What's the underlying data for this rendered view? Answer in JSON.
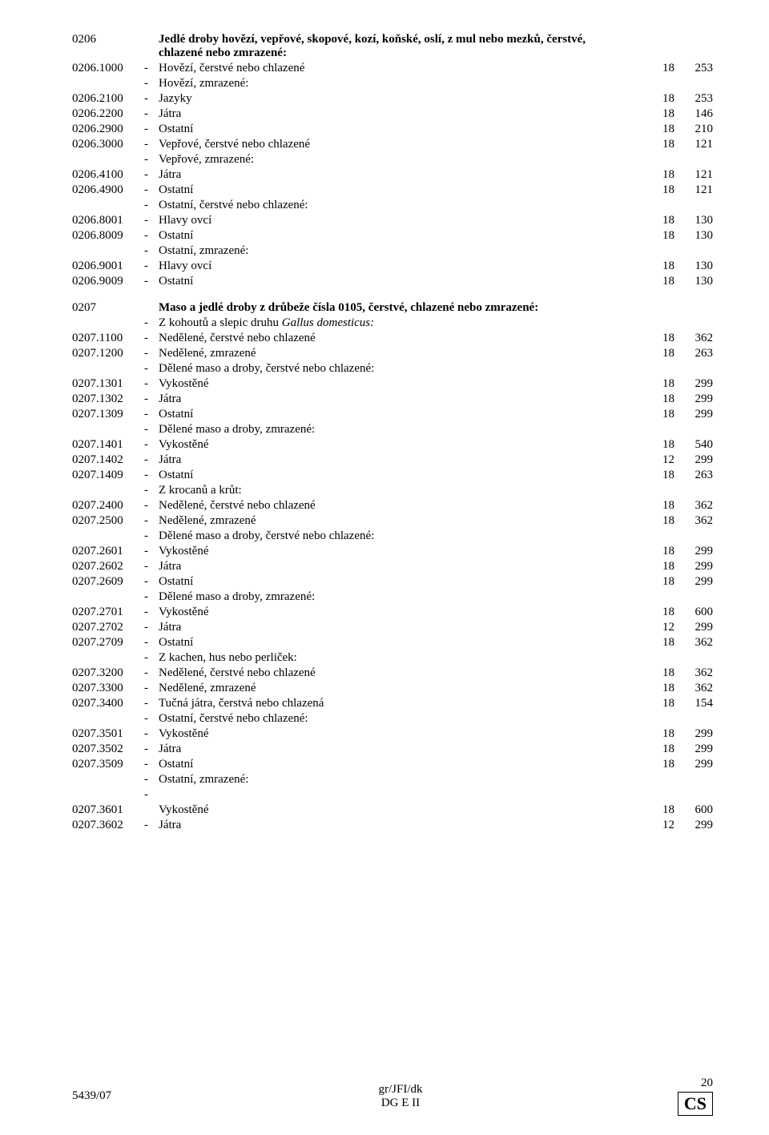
{
  "rows": [
    {
      "code": "0206",
      "type": "heading",
      "text": "Jedlé droby hovězí, vepřové, skopové, kozí, koňské, oslí, z mul nebo mezků, čerstvé, chlazené nebo zmrazené:"
    },
    {
      "code": "0206.1000",
      "dash": "-",
      "text": "Hovězí, čerstvé nebo chlazené",
      "c1": "18",
      "c2": "253"
    },
    {
      "code": "",
      "dash": "-",
      "text": "Hovězí, zmrazené:"
    },
    {
      "code": "0206.2100",
      "dash": "-",
      "text": "Jazyky",
      "c1": "18",
      "c2": "253"
    },
    {
      "code": "0206.2200",
      "dash": "-",
      "text": "Játra",
      "c1": "18",
      "c2": "146"
    },
    {
      "code": "0206.2900",
      "dash": "-",
      "text": "Ostatní",
      "c1": "18",
      "c2": "210"
    },
    {
      "code": "0206.3000",
      "dash": "-",
      "text": "Vepřové, čerstvé nebo chlazené",
      "c1": "18",
      "c2": "121"
    },
    {
      "code": "",
      "dash": "-",
      "text": "Vepřové, zmrazené:"
    },
    {
      "code": "0206.4100",
      "dash": "-",
      "text": "Játra",
      "c1": "18",
      "c2": "121"
    },
    {
      "code": "0206.4900",
      "dash": "-",
      "text": "Ostatní",
      "c1": "18",
      "c2": "121"
    },
    {
      "code": "",
      "dash": "-",
      "text": "Ostatní, čerstvé nebo chlazené:"
    },
    {
      "code": "0206.8001",
      "dash": "-",
      "text": "Hlavy ovcí",
      "c1": "18",
      "c2": "130"
    },
    {
      "code": "0206.8009",
      "dash": "-",
      "text": "Ostatní",
      "c1": "18",
      "c2": "130"
    },
    {
      "code": "",
      "dash": "-",
      "text": "Ostatní, zmrazené:"
    },
    {
      "code": "0206.9001",
      "dash": "-",
      "text": "Hlavy ovcí",
      "c1": "18",
      "c2": "130"
    },
    {
      "code": "0206.9009",
      "dash": "-",
      "text": "Ostatní",
      "c1": "18",
      "c2": "130"
    },
    {
      "type": "spacer"
    },
    {
      "code": "0207",
      "type": "heading",
      "text": "Maso a jedlé droby z drůbeže čísla 0105, čerstvé, chlazené nebo zmrazené:"
    },
    {
      "code": "",
      "dash": "-",
      "type": "italic",
      "text": "Z kohoutů a slepic druhu Gallus domesticus:"
    },
    {
      "code": "0207.1100",
      "dash": "-",
      "text": "Nedělené, čerstvé nebo chlazené",
      "c1": "18",
      "c2": "362"
    },
    {
      "code": "0207.1200",
      "dash": "-",
      "text": "Nedělené, zmrazené",
      "c1": "18",
      "c2": "263"
    },
    {
      "code": "",
      "dash": "-",
      "text": "Dělené maso a droby, čerstvé nebo chlazené:"
    },
    {
      "code": "0207.1301",
      "dash": "-",
      "text": "Vykostěné",
      "c1": "18",
      "c2": "299"
    },
    {
      "code": "0207.1302",
      "dash": "-",
      "text": "Játra",
      "c1": "18",
      "c2": "299"
    },
    {
      "code": "0207.1309",
      "dash": "-",
      "text": "Ostatní",
      "c1": "18",
      "c2": "299"
    },
    {
      "code": "",
      "dash": "-",
      "text": "Dělené maso a droby, zmrazené:"
    },
    {
      "code": "0207.1401",
      "dash": "-",
      "text": "Vykostěné",
      "c1": "18",
      "c2": "540"
    },
    {
      "code": "0207.1402",
      "dash": "-",
      "text": "Játra",
      "c1": "12",
      "c2": "299"
    },
    {
      "code": "0207.1409",
      "dash": "-",
      "text": "Ostatní",
      "c1": "18",
      "c2": "263"
    },
    {
      "code": "",
      "dash": "-",
      "text": "Z krocanů a krůt:"
    },
    {
      "code": "0207.2400",
      "dash": "-",
      "text": "Nedělené, čerstvé nebo chlazené",
      "c1": "18",
      "c2": "362"
    },
    {
      "code": "0207.2500",
      "dash": "-",
      "text": "Nedělené, zmrazené",
      "c1": "18",
      "c2": "362"
    },
    {
      "code": "",
      "dash": "-",
      "text": "Dělené maso a droby, čerstvé nebo chlazené:"
    },
    {
      "code": "0207.2601",
      "dash": "-",
      "text": "Vykostěné",
      "c1": "18",
      "c2": "299"
    },
    {
      "code": "0207.2602",
      "dash": "-",
      "text": "Játra",
      "c1": "18",
      "c2": "299"
    },
    {
      "code": "0207.2609",
      "dash": "-",
      "text": "Ostatní",
      "c1": "18",
      "c2": "299"
    },
    {
      "code": "",
      "dash": "-",
      "text": "Dělené maso a droby, zmrazené:"
    },
    {
      "code": "0207.2701",
      "dash": "-",
      "text": "Vykostěné",
      "c1": "18",
      "c2": "600"
    },
    {
      "code": "0207.2702",
      "dash": "-",
      "text": "Játra",
      "c1": "12",
      "c2": "299"
    },
    {
      "code": "0207.2709",
      "dash": "-",
      "text": "Ostatní",
      "c1": "18",
      "c2": "362"
    },
    {
      "code": "",
      "dash": "-",
      "text": "Z kachen, hus nebo perliček:"
    },
    {
      "code": "0207.3200",
      "dash": "-",
      "text": "Nedělené, čerstvé nebo chlazené",
      "c1": "18",
      "c2": "362"
    },
    {
      "code": "0207.3300",
      "dash": "-",
      "text": "Nedělené, zmrazené",
      "c1": "18",
      "c2": "362"
    },
    {
      "code": "0207.3400",
      "dash": "-",
      "text": "Tučná játra, čerstvá nebo chlazená",
      "c1": "18",
      "c2": "154"
    },
    {
      "code": "",
      "dash": "-",
      "text": "Ostatní, čerstvé nebo chlazené:"
    },
    {
      "code": "0207.3501",
      "dash": "-",
      "text": "Vykostěné",
      "c1": "18",
      "c2": "299"
    },
    {
      "code": "0207.3502",
      "dash": "-",
      "text": "Játra",
      "c1": "18",
      "c2": "299"
    },
    {
      "code": "0207.3509",
      "dash": "-",
      "text": "Ostatní",
      "c1": "18",
      "c2": "299"
    },
    {
      "code": "",
      "dash": "-",
      "text": "Ostatní, zmrazené:"
    },
    {
      "code": "",
      "dash": "-",
      "text": ""
    },
    {
      "code": "0207.3601",
      "dash": "",
      "text": "Vykostěné",
      "c1": "18",
      "c2": "600"
    },
    {
      "code": "0207.3602",
      "dash": "-",
      "text": "Játra",
      "c1": "12",
      "c2": "299"
    }
  ],
  "footer": {
    "left": "5439/07",
    "centerTop": "gr/JFI/dk",
    "centerBottom": "DG E II",
    "pageNum": "20",
    "lang": "CS"
  }
}
